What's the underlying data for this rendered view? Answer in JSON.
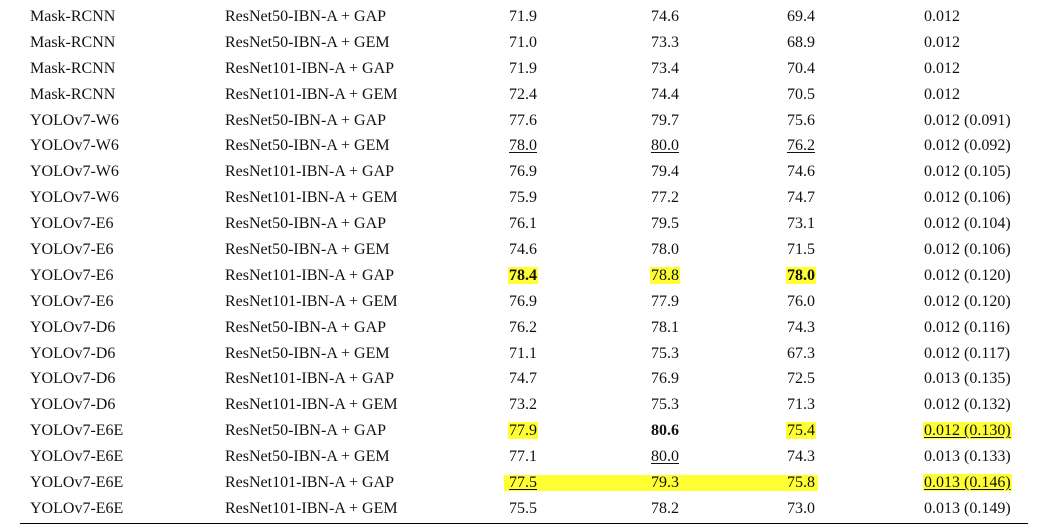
{
  "table": {
    "rows": [
      {
        "cells": [
          {
            "t": "Mask-RCNN"
          },
          {
            "t": "ResNet50-IBN-A + GAP"
          },
          {
            "t": "71.9"
          },
          {
            "t": "74.6"
          },
          {
            "t": "69.4"
          },
          {
            "t": "0.012"
          }
        ]
      },
      {
        "cells": [
          {
            "t": "Mask-RCNN"
          },
          {
            "t": "ResNet50-IBN-A + GEM"
          },
          {
            "t": "71.0"
          },
          {
            "t": "73.3"
          },
          {
            "t": "68.9"
          },
          {
            "t": "0.012"
          }
        ]
      },
      {
        "cells": [
          {
            "t": "Mask-RCNN"
          },
          {
            "t": "ResNet101-IBN-A + GAP"
          },
          {
            "t": "71.9"
          },
          {
            "t": "73.4"
          },
          {
            "t": "70.4"
          },
          {
            "t": "0.012"
          }
        ]
      },
      {
        "cells": [
          {
            "t": "Mask-RCNN"
          },
          {
            "t": "ResNet101-IBN-A + GEM"
          },
          {
            "t": "72.4"
          },
          {
            "t": "74.4"
          },
          {
            "t": "70.5"
          },
          {
            "t": "0.012"
          }
        ]
      },
      {
        "cells": [
          {
            "t": "YOLOv7-W6"
          },
          {
            "t": "ResNet50-IBN-A + GAP"
          },
          {
            "t": "77.6"
          },
          {
            "t": "79.7"
          },
          {
            "t": "75.6"
          },
          {
            "t": "0.012 (0.091)"
          }
        ]
      },
      {
        "cells": [
          {
            "t": "YOLOv7-W6"
          },
          {
            "t": "ResNet50-IBN-A + GEM"
          },
          {
            "t": "78.0",
            "u": true
          },
          {
            "t": "80.0",
            "u": true
          },
          {
            "t": "76.2",
            "u": true
          },
          {
            "t": "0.012 (0.092)"
          }
        ]
      },
      {
        "cells": [
          {
            "t": "YOLOv7-W6"
          },
          {
            "t": "ResNet101-IBN-A + GAP"
          },
          {
            "t": "76.9"
          },
          {
            "t": "79.4"
          },
          {
            "t": "74.6"
          },
          {
            "t": "0.012 (0.105)"
          }
        ]
      },
      {
        "cells": [
          {
            "t": "YOLOv7-W6"
          },
          {
            "t": "ResNet101-IBN-A + GEM"
          },
          {
            "t": "75.9"
          },
          {
            "t": "77.2"
          },
          {
            "t": "74.7"
          },
          {
            "t": "0.012 (0.106)"
          }
        ]
      },
      {
        "cells": [
          {
            "t": "YOLOv7-E6"
          },
          {
            "t": "ResNet50-IBN-A + GAP"
          },
          {
            "t": "76.1"
          },
          {
            "t": "79.5"
          },
          {
            "t": "73.1"
          },
          {
            "t": "0.012 (0.104)"
          }
        ]
      },
      {
        "cells": [
          {
            "t": "YOLOv7-E6"
          },
          {
            "t": "ResNet50-IBN-A + GEM"
          },
          {
            "t": "74.6"
          },
          {
            "t": "78.0"
          },
          {
            "t": "71.5"
          },
          {
            "t": "0.012 (0.106)"
          }
        ]
      },
      {
        "cells": [
          {
            "t": "YOLOv7-E6"
          },
          {
            "t": "ResNet101-IBN-A + GAP"
          },
          {
            "t": "78.4",
            "b": true,
            "h": true
          },
          {
            "t": "78.8",
            "h": true
          },
          {
            "t": "78.0",
            "b": true,
            "h": true
          },
          {
            "t": "0.012 (0.120)"
          }
        ]
      },
      {
        "cells": [
          {
            "t": "YOLOv7-E6"
          },
          {
            "t": "ResNet101-IBN-A + GEM"
          },
          {
            "t": "76.9"
          },
          {
            "t": "77.9"
          },
          {
            "t": "76.0"
          },
          {
            "t": "0.012 (0.120)"
          }
        ]
      },
      {
        "cells": [
          {
            "t": "YOLOv7-D6"
          },
          {
            "t": "ResNet50-IBN-A + GAP"
          },
          {
            "t": "76.2"
          },
          {
            "t": "78.1"
          },
          {
            "t": "74.3"
          },
          {
            "t": "0.012 (0.116)"
          }
        ]
      },
      {
        "cells": [
          {
            "t": "YOLOv7-D6"
          },
          {
            "t": "ResNet50-IBN-A + GEM"
          },
          {
            "t": "71.1"
          },
          {
            "t": "75.3"
          },
          {
            "t": "67.3"
          },
          {
            "t": "0.012 (0.117)"
          }
        ]
      },
      {
        "cells": [
          {
            "t": "YOLOv7-D6"
          },
          {
            "t": "ResNet101-IBN-A + GAP"
          },
          {
            "t": "74.7"
          },
          {
            "t": "76.9"
          },
          {
            "t": "72.5"
          },
          {
            "t": "0.013 (0.135)"
          }
        ]
      },
      {
        "cells": [
          {
            "t": "YOLOv7-D6"
          },
          {
            "t": "ResNet101-IBN-A + GEM"
          },
          {
            "t": "73.2"
          },
          {
            "t": "75.3"
          },
          {
            "t": "71.3"
          },
          {
            "t": "0.012 (0.132)"
          }
        ]
      },
      {
        "cells": [
          {
            "t": "YOLOv7-E6E"
          },
          {
            "t": "ResNet50-IBN-A + GAP"
          },
          {
            "t": "77.9",
            "h": true
          },
          {
            "t": "80.6",
            "b": true
          },
          {
            "t": "75.4",
            "h": true
          },
          {
            "t": "0.012 (0.130)",
            "h": true,
            "u": true
          }
        ]
      },
      {
        "cells": [
          {
            "t": "YOLOv7-E6E"
          },
          {
            "t": "ResNet50-IBN-A + GEM"
          },
          {
            "t": "77.1"
          },
          {
            "t": "80.0",
            "u": true
          },
          {
            "t": "74.3"
          },
          {
            "t": "0.013 (0.133)"
          }
        ]
      },
      {
        "band": true,
        "cells": [
          {
            "t": "YOLOv7-E6E"
          },
          {
            "t": "ResNet101-IBN-A + GAP"
          },
          {
            "t": "77.5",
            "u": true
          },
          {
            "t": "79.3"
          },
          {
            "t": "75.8"
          },
          {
            "t": "0.013 (0.146)",
            "h": true,
            "u": true
          }
        ]
      },
      {
        "cells": [
          {
            "t": "YOLOv7-E6E"
          },
          {
            "t": "ResNet101-IBN-A + GEM"
          },
          {
            "t": "75.5"
          },
          {
            "t": "78.2"
          },
          {
            "t": "73.0"
          },
          {
            "t": "0.013 (0.149)"
          }
        ]
      }
    ]
  }
}
